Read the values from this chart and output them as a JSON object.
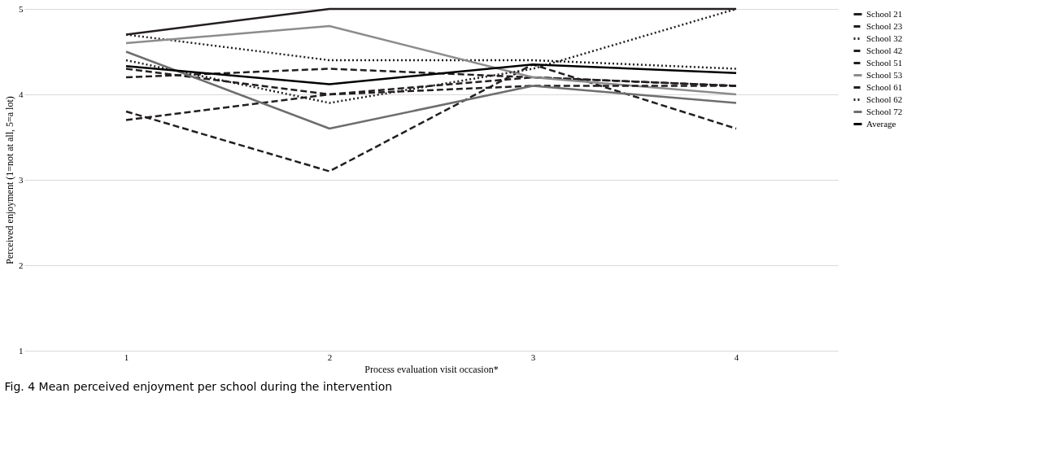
{
  "chart_data": {
    "type": "line",
    "categories": [
      "1",
      "2",
      "3",
      "4"
    ],
    "xlabel": "Process evaluation visit occasion*",
    "ylabel": "Perceived enjoyment (1=not at all, 5=a lot)",
    "ylim": [
      1,
      5
    ],
    "yticks": [
      1,
      2,
      3,
      4,
      5
    ],
    "grid": "y",
    "legend": "right",
    "marker": "none",
    "series": [
      {
        "name": "School 21",
        "color": "#231f20",
        "line_style": "solid",
        "values": [
          4.7,
          5.0,
          5.0,
          5.0
        ]
      },
      {
        "name": "School 23",
        "color": "#231f20",
        "line_style": "dashed",
        "values": [
          4.2,
          4.3,
          4.2,
          4.1
        ]
      },
      {
        "name": "School 32",
        "color": "#231f20",
        "line_style": "dotted",
        "values": [
          4.7,
          4.4,
          4.4,
          4.3
        ]
      },
      {
        "name": "School 42",
        "color": "#231f20",
        "line_style": "dashed",
        "values": [
          4.3,
          4.0,
          4.2,
          4.1
        ]
      },
      {
        "name": "School 51",
        "color": "#231f20",
        "line_style": "dashed",
        "values": [
          3.8,
          3.1,
          4.35,
          3.6
        ]
      },
      {
        "name": "School 53",
        "color": "#8c8c8c",
        "line_style": "solid",
        "values": [
          4.6,
          4.8,
          4.2,
          4.0
        ]
      },
      {
        "name": "School 61",
        "color": "#231f20",
        "line_style": "dashed",
        "values": [
          3.7,
          4.0,
          4.1,
          4.1
        ]
      },
      {
        "name": "School 62",
        "color": "#231f20",
        "line_style": "dotted",
        "values": [
          4.4,
          3.9,
          4.3,
          5.0
        ]
      },
      {
        "name": "School 72",
        "color": "#6e6e6e",
        "line_style": "solid",
        "values": [
          4.5,
          3.6,
          4.1,
          3.9
        ]
      },
      {
        "name": "Average",
        "color": "#000000",
        "line_style": "solid",
        "values": [
          4.33,
          4.12,
          4.35,
          4.25
        ]
      }
    ],
    "annotations": [
      "Fig. 4 Mean perceived enjoyment per school during the intervention"
    ]
  }
}
